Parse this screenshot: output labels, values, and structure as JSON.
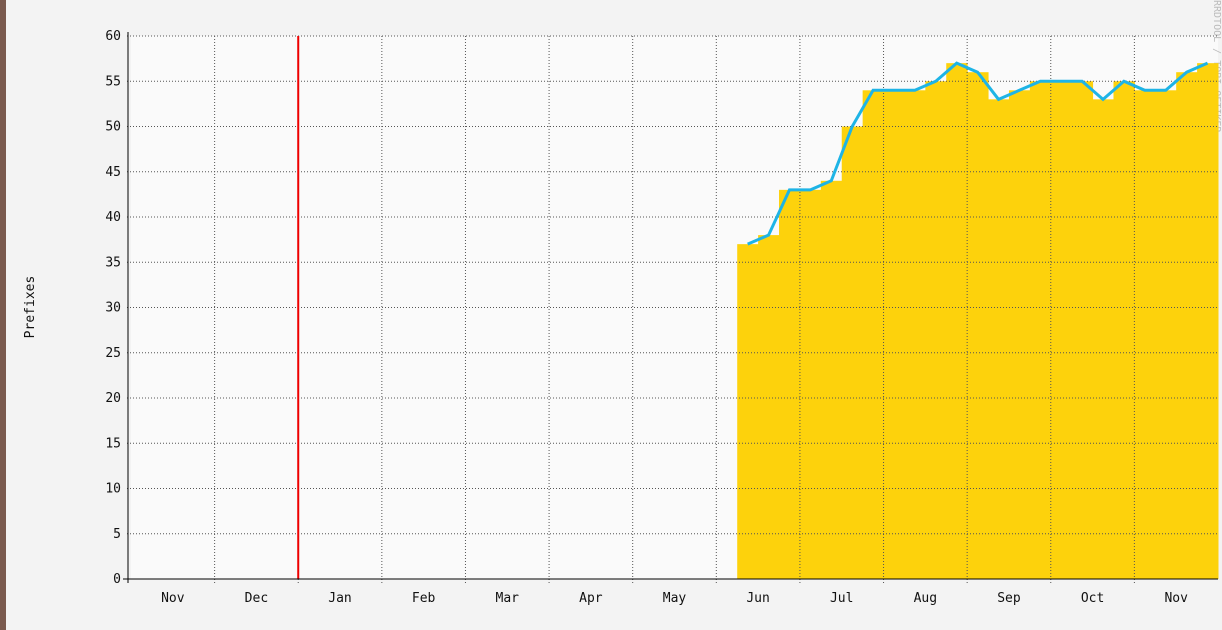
{
  "chart_data": {
    "type": "area",
    "y_label": "Prefixes",
    "watermark": "RRDTOOL / TOBI OETIKER",
    "categories": [
      null,
      "Nov",
      null,
      null,
      null,
      "Dec",
      null,
      null,
      null,
      "Jan",
      null,
      null,
      null,
      "Feb",
      null,
      null,
      null,
      "Mar",
      null,
      null,
      null,
      "Apr",
      null,
      null,
      null,
      "May",
      null,
      null,
      null,
      "Jun",
      null,
      null,
      null,
      "Jul",
      null,
      null,
      null,
      "Aug",
      null,
      null,
      null,
      "Sep",
      null,
      null,
      null,
      "Oct",
      null,
      null,
      null,
      "Nov",
      null,
      null
    ],
    "series": [
      {
        "name": "Prefixes",
        "color": "#1eb4e6",
        "fill": "#fdd20c",
        "values": [
          null,
          null,
          null,
          null,
          null,
          null,
          null,
          null,
          null,
          null,
          null,
          null,
          null,
          null,
          null,
          null,
          null,
          null,
          null,
          null,
          null,
          null,
          null,
          null,
          null,
          null,
          null,
          null,
          null,
          37,
          38,
          43,
          43,
          44,
          50,
          54,
          54,
          54,
          55,
          57,
          56,
          53,
          54,
          55,
          55,
          55,
          53,
          55,
          54,
          54,
          56,
          57
        ]
      }
    ],
    "ylim": [
      0,
      60
    ],
    "yticks": [
      0,
      5,
      10,
      15,
      20,
      25,
      30,
      35,
      40,
      45,
      50,
      55,
      60
    ],
    "grid": true
  }
}
